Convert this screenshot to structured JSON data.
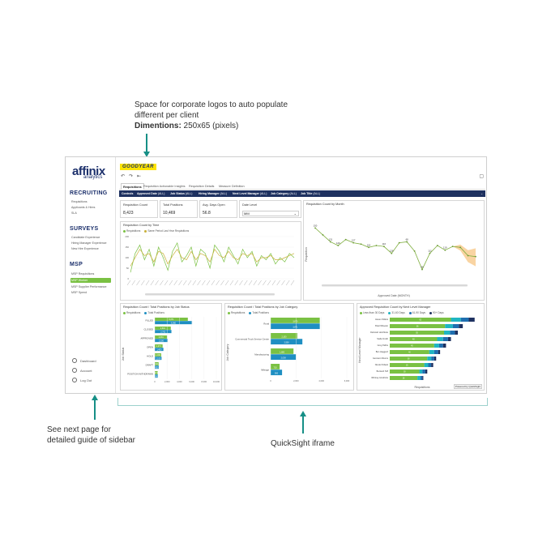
{
  "annotations": {
    "logo_note_line1": "Space for corporate logos to auto populate",
    "logo_note_line2": "different per client",
    "logo_note_dim_label": "Dimentions:",
    "logo_note_dim_value": " 250x65 (pixels)",
    "sidebar_note_line1": "See next page for",
    "sidebar_note_line2": "detailed guide of sidebar",
    "iframe_note": "QuickSight iframe"
  },
  "sidebar": {
    "logo": "affinix",
    "logo_sub": "analytics",
    "sections": [
      {
        "title": "RECRUITING",
        "items": [
          "Requisitions",
          "Applicants & Hires",
          "SLA"
        ]
      },
      {
        "title": "SURVEYS",
        "items": [
          "Candidate Experience",
          "Hiring Manager Experience",
          "New Hire Experience"
        ]
      },
      {
        "title": "MSP",
        "items": [
          "MSP Requisitions",
          "MSP Worker",
          "MSP Supplier Performance",
          "MSP Spend"
        ]
      }
    ],
    "active_item": "MSP Worker",
    "footer": [
      "Dashboard",
      "Account",
      "Log Out"
    ]
  },
  "header": {
    "brand": "GOODYEAR",
    "tabs": [
      "Requisitions",
      "Requisition Actionable Insights",
      "Requisition Details",
      "Measure Definition"
    ],
    "controls": [
      {
        "label": "Controls",
        "value": ""
      },
      {
        "label": "Approved Date",
        "value": "(ALL)"
      },
      {
        "label": "Job Status",
        "value": "(ALL)"
      },
      {
        "label": "Hiring Manager",
        "value": "(ALL)"
      },
      {
        "label": "Next Level Manager",
        "value": "(ALL)"
      },
      {
        "label": "Job Category",
        "value": "(ALL)"
      },
      {
        "label": "Job Title",
        "value": "(ALL)"
      }
    ]
  },
  "kpis": [
    {
      "title": "Requisition Count",
      "value": "8,423"
    },
    {
      "title": "Total Positions",
      "value": "10,469"
    },
    {
      "title": "Avg. Days Open",
      "value": "56.8"
    },
    {
      "title": "Date Level",
      "value": "MM"
    }
  ],
  "panels": {
    "by_month_title": "Requisition Count by Month",
    "by_month_ylabel": "Requisition",
    "by_month_xlabel": "Approved Date (MONTH)",
    "by_time_title": "Requisition Count by Time",
    "by_time_legend": [
      "Requisitions",
      "Same Period Last Year Requisitions"
    ],
    "job_status_title": "Requisition Count / Total Positions by Job Status",
    "job_status_ylabel": "Job Status",
    "job_category_title": "Requisition Count / Total Positions by Job Category",
    "job_category_ylabel": "Job Category",
    "manager_title": "Approved Requisition Count by Next Level Manager",
    "manager_ylabel": "Next Level Manager",
    "manager_xlabel": "Requisitions",
    "bar_legend": [
      "Requisitions",
      "Total Positions"
    ],
    "manager_legend": [
      "Less than 30 Days",
      "31-60 Days",
      "61-90 Days",
      "90+ Days"
    ],
    "export_label": "Powered by QuickSight"
  },
  "colors": {
    "green": "#7ac143",
    "blue": "#1f8fc2",
    "navy": "#1e3160",
    "olive": "#a8c43a",
    "teal": "#168f86"
  },
  "chart_data": [
    {
      "type": "line",
      "title": "Requisition Count by Month",
      "xlabel": "Approved Date (MONTH)",
      "ylabel": "Requisition",
      "series": [
        {
          "values": [
            150,
            135,
            120,
            112,
            125,
            118,
            115,
            108,
            112,
            110,
            95,
            118,
            120,
            100,
            60,
            95,
            112,
            102,
            110,
            108,
            90,
            88
          ]
        }
      ],
      "data_labels": [
        "150",
        "131",
        "120",
        "127",
        "115",
        "116",
        "126",
        "68",
        "66",
        "112",
        "119"
      ]
    },
    {
      "type": "line",
      "title": "Requisition Count by Time",
      "series": [
        {
          "name": "Requisitions",
          "values": [
            30,
            120,
            160,
            90,
            140,
            60,
            150,
            100,
            40,
            130,
            170,
            80,
            110,
            150,
            60,
            140,
            120,
            50,
            160,
            130,
            80,
            150,
            110,
            70,
            140,
            100,
            130,
            60,
            110,
            90,
            120,
            70,
            100,
            80,
            120,
            100
          ]
        },
        {
          "name": "Same Period Last Year Requisitions",
          "values": [
            60,
            100,
            140,
            110,
            120,
            80,
            130,
            120,
            70,
            110,
            140,
            100,
            90,
            130,
            90,
            120,
            110,
            80,
            140,
            110,
            100,
            130,
            100,
            90,
            120,
            110,
            120,
            80,
            100,
            100,
            110,
            90,
            90,
            100,
            110,
            120
          ]
        }
      ],
      "ylim": [
        0,
        200
      ]
    },
    {
      "type": "bar",
      "title": "Requisition Count / Total Positions by Job Status",
      "xlabel": "",
      "ylabel": "Job Status",
      "categories": [
        "FILLED",
        "CLOSED",
        "APPROVED",
        "OPEN",
        "HOLD",
        "DRAFT",
        "POSITION WITHDRAWN"
      ],
      "series": [
        {
          "name": "Requisitions",
          "values": [
            5371,
            2601,
            2031,
            1271,
            1040,
            621,
            472
          ]
        },
        {
          "name": "Total Positions",
          "values": [
            6060,
            2702,
            2100,
            1400,
            1100,
            650,
            500
          ]
        }
      ],
      "xlim": [
        0,
        10000
      ]
    },
    {
      "type": "bar",
      "title": "Requisition Count / Total Positions by Job Category",
      "ylabel": "Job Category",
      "categories": [
        "Rural",
        "Commercial Truck Service Center",
        "Manufacturing",
        "Mileage"
      ],
      "series": [
        {
          "name": "Requisitions",
          "values": [
            3870,
            2100,
            1800,
            710
          ]
        },
        {
          "name": "Total Positions",
          "values": [
            3871,
            2500,
            2000,
            900
          ]
        }
      ]
    },
    {
      "type": "bar",
      "title": "Approved Requisition Count by Next Level Manager",
      "xlabel": "Requisitions",
      "ylabel": "Next Level Manager",
      "categories": [
        "Haven Willets",
        "Brad Wheeler",
        "Deborah Hotchkiss",
        "Stella Smith",
        "Greg Tabbs",
        "Ben Haggerd",
        "Gennaro Moonis",
        "Nicole Pollack",
        "Bentesh Teff",
        "Whitney Hindricks"
      ],
      "series": [
        {
          "name": "Less than 30 Days",
          "values": [
            62,
            56,
            55,
            48,
            45,
            40,
            38,
            35,
            30,
            28
          ]
        },
        {
          "name": "31-60 Days",
          "values": [
            10,
            8,
            6,
            6,
            5,
            5,
            4,
            4,
            3,
            3
          ]
        },
        {
          "name": "61-90 Days",
          "values": [
            8,
            6,
            5,
            5,
            4,
            4,
            3,
            3,
            3,
            2
          ]
        },
        {
          "name": "90+ Days",
          "values": [
            6,
            4,
            3,
            3,
            3,
            2,
            2,
            2,
            2,
            1
          ]
        }
      ]
    }
  ]
}
